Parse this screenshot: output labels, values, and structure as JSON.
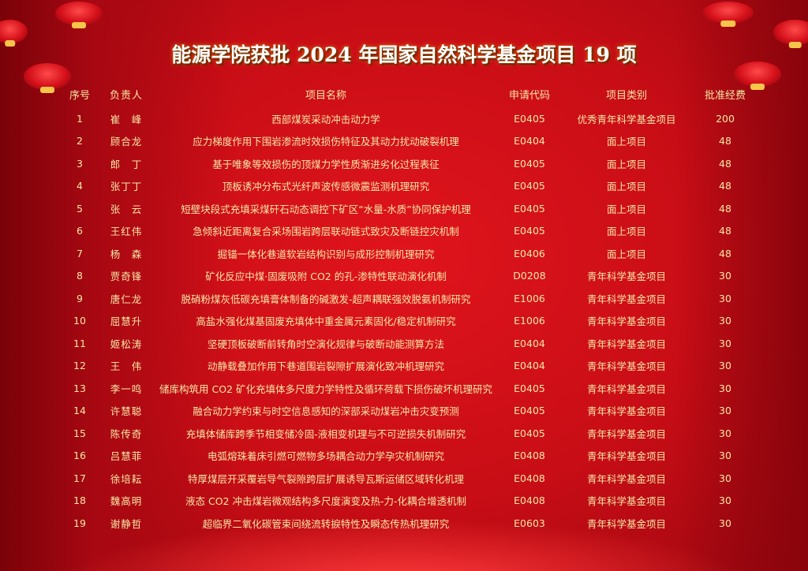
{
  "title": "能源学院获批 2024 年国家自然科学基金项目 19 项",
  "colors": {
    "background": "#c80d16",
    "text": "#f6e7a6",
    "title": "#ffffff"
  },
  "table": {
    "headers": [
      "序号",
      "负责人",
      "项目名称",
      "申请代码",
      "项目类别",
      "批准经费"
    ],
    "rows": [
      [
        "1",
        "崔　峰",
        "西部煤炭采动冲击动力学",
        "E0405",
        "优秀青年科学基金项目",
        "200"
      ],
      [
        "2",
        "顾合龙",
        "应力梯度作用下围岩渗流时效损伤特征及其动力扰动破裂机理",
        "E0404",
        "面上项目",
        "48"
      ],
      [
        "3",
        "郎　丁",
        "基于唯象等效损伤的顶煤力学性质渐进劣化过程表征",
        "E0405",
        "面上项目",
        "48"
      ],
      [
        "4",
        "张丁丁",
        "顶板诱冲分布式光纤声波传感微震监测机理研究",
        "E0405",
        "面上项目",
        "48"
      ],
      [
        "5",
        "张　云",
        "短壁块段式充填采煤矸石动态调控下矿区“水量-水质”协同保护机理",
        "E0405",
        "面上项目",
        "48"
      ],
      [
        "6",
        "王红伟",
        "急倾斜近距离复合采场围岩跨层联动链式致灾及断链控灾机制",
        "E0405",
        "面上项目",
        "48"
      ],
      [
        "7",
        "杨　森",
        "掘锚一体化巷道软岩结构识别与成形控制机理研究",
        "E0406",
        "面上项目",
        "48"
      ],
      [
        "8",
        "贾奇锋",
        "矿化反应中煤·固废吸附 CO2 的孔-渗特性联动演化机制",
        "D0208",
        "青年科学基金项目",
        "30"
      ],
      [
        "9",
        "唐仁龙",
        "脱硝粉煤灰低碳充填膏体制备的碱激发-超声耦联强效脱氨机制研究",
        "E1006",
        "青年科学基金项目",
        "30"
      ],
      [
        "10",
        "屈慧升",
        "高盐水强化煤基固废充填体中重金属元素固化/稳定机制研究",
        "E1006",
        "青年科学基金项目",
        "30"
      ],
      [
        "11",
        "姬松涛",
        "坚硬顶板破断前转角时空演化规律与破断动能测算方法",
        "E0404",
        "青年科学基金项目",
        "30"
      ],
      [
        "12",
        "王　伟",
        "动静载叠加作用下巷道围岩裂隙扩展演化致冲机理研究",
        "E0404",
        "青年科学基金项目",
        "30"
      ],
      [
        "13",
        "李一鸣",
        "储库构筑用 CO2 矿化充填体多尺度力学特性及循环荷载下损伤破坏机理研究",
        "E0405",
        "青年科学基金项目",
        "30"
      ],
      [
        "14",
        "许慧聪",
        "融合动力学约束与时空信息感知的深部采动煤岩冲击灾变预测",
        "E0405",
        "青年科学基金项目",
        "30"
      ],
      [
        "15",
        "陈传奇",
        "充填体储库跨季节相变储冷固-液相变机理与不可逆损失机制研究",
        "E0405",
        "青年科学基金项目",
        "30"
      ],
      [
        "16",
        "吕慧菲",
        "电弧熔珠着床引燃可燃物多场耦合动力学孕灾机制研究",
        "E0408",
        "青年科学基金项目",
        "30"
      ],
      [
        "17",
        "徐培耘",
        "特厚煤层开采覆岩导气裂隙跨层扩展诱导瓦斯运储区域转化机理",
        "E0408",
        "青年科学基金项目",
        "30"
      ],
      [
        "18",
        "魏高明",
        "液态 CO2 冲击煤岩微观结构多尺度演变及热-力-化耦合增透机制",
        "E0408",
        "青年科学基金项目",
        "30"
      ],
      [
        "19",
        "谢静哲",
        "超临界二氧化碳管束间绕流转捩特性及瞬态传热机理研究",
        "E0603",
        "青年科学基金项目",
        "30"
      ]
    ]
  }
}
